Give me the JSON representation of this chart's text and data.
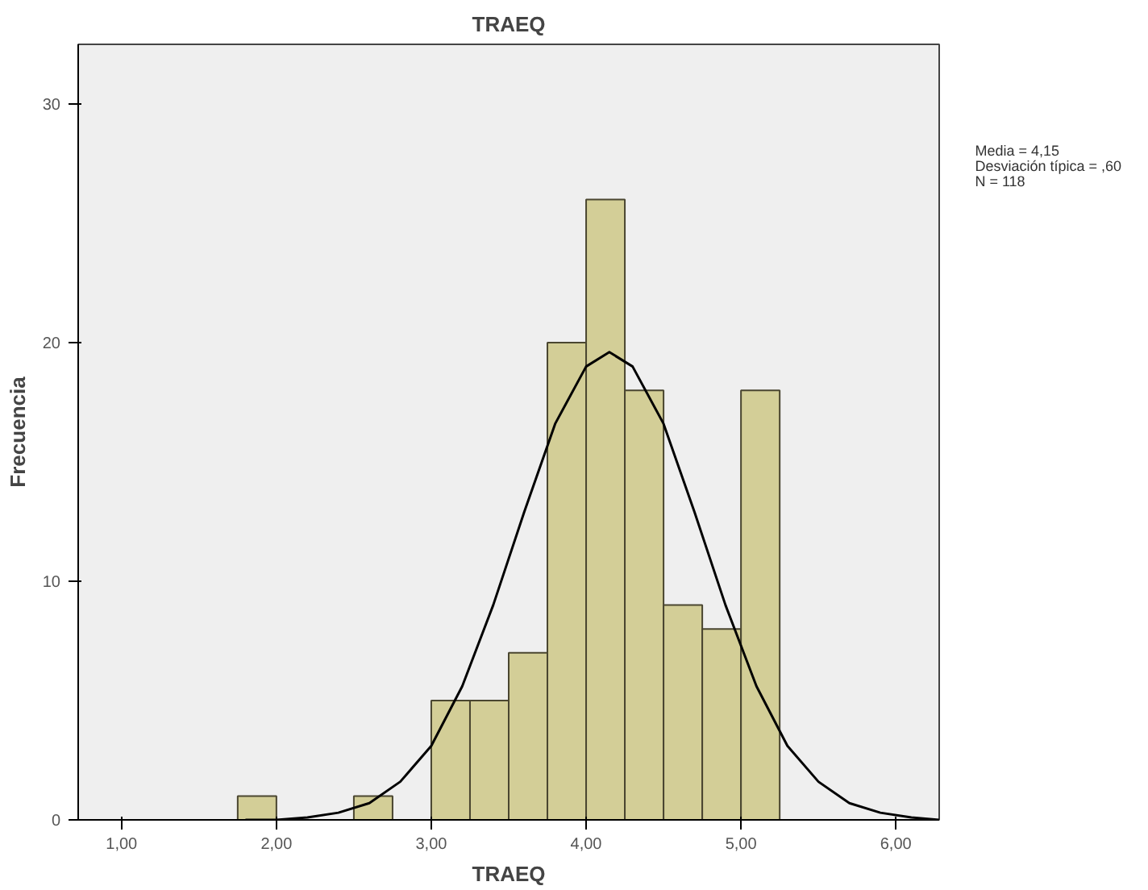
{
  "chart_data": {
    "type": "histogram",
    "title": "TRAEQ",
    "xlabel": "TRAEQ",
    "ylabel": "Frecuencia",
    "bins": [
      1.75,
      2.0,
      2.25,
      2.5,
      2.75,
      3.0,
      3.25,
      3.5,
      3.75,
      4.0,
      4.25,
      4.5,
      4.75,
      5.0,
      5.25
    ],
    "series": [
      {
        "color": "#d3ce97",
        "values": [
          1,
          0,
          0,
          1,
          0,
          5,
          5,
          7,
          20,
          26,
          18,
          9,
          8,
          18
        ]
      },
      {
        "type": "line",
        "color": "#000000",
        "x": [
          1.8,
          2.0,
          2.2,
          2.4,
          2.6,
          2.8,
          3.0,
          3.2,
          3.4,
          3.6,
          3.8,
          4.0,
          4.15,
          4.3,
          4.5,
          4.7,
          4.9,
          5.1,
          5.3,
          5.5,
          5.7,
          5.9,
          6.1,
          6.28
        ],
        "values": [
          0.0,
          0.0,
          0.1,
          0.3,
          0.7,
          1.6,
          3.1,
          5.6,
          9.0,
          12.9,
          16.6,
          19.0,
          19.6,
          19.0,
          16.6,
          12.9,
          9.0,
          5.6,
          3.1,
          1.6,
          0.7,
          0.3,
          0.1,
          0.0
        ]
      }
    ],
    "xlim": [
      0.72,
      6.28
    ],
    "xticks": [
      {
        "value": 1,
        "label": "1,00"
      },
      {
        "value": 2,
        "label": "2,00"
      },
      {
        "value": 3,
        "label": "3,00"
      },
      {
        "value": 4,
        "label": "4,00"
      },
      {
        "value": 5,
        "label": "5,00"
      },
      {
        "value": 6,
        "label": "6,00"
      }
    ],
    "ylim": [
      0,
      32.5
    ],
    "yticks": [
      0,
      10,
      20,
      30
    ],
    "grid": false,
    "annotations": [
      "Media = 4,15",
      "Desviación típica = ,60",
      "N = 118"
    ]
  }
}
